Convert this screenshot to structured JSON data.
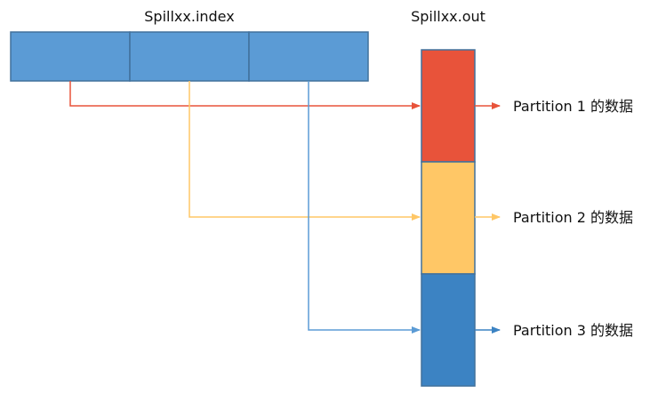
{
  "index_file": {
    "label": "Spillxx.index",
    "cell_color": "#5b9bd5",
    "cell_count": 3
  },
  "out_file": {
    "label": "Spillxx.out"
  },
  "partitions": [
    {
      "label": "Partition 1 的数据",
      "color": "#e8533a"
    },
    {
      "label": "Partition 2 的数据",
      "color": "#ffc766"
    },
    {
      "label": "Partition 3 的数据",
      "color": "#3c83c3"
    }
  ],
  "arrow_colors": [
    "#e8533a",
    "#ffc766",
    "#5b9bd5"
  ],
  "stroke_color": "#41719c"
}
